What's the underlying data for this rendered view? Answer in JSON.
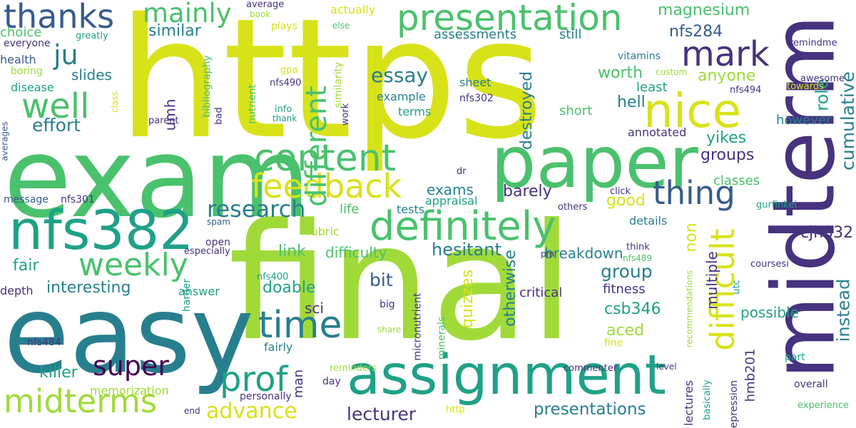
{
  "colors": {
    "background": "#ffffff",
    "yellow": "#d8e219",
    "lime": "#a0da39",
    "green": "#4ac16d",
    "teal": "#1fa187",
    "bluegreen": "#277f8e",
    "blue": "#365c8d",
    "indigo": "#46327e",
    "purple": "#440154"
  },
  "words": [
    {
      "text": "https",
      "color": "yellow"
    },
    {
      "text": "exam",
      "color": "green"
    },
    {
      "text": "final",
      "color": "lime"
    },
    {
      "text": "midterm",
      "color": "indigo"
    },
    {
      "text": "easy",
      "color": "bluegreen"
    },
    {
      "text": "paper",
      "color": "green"
    },
    {
      "text": "assignment",
      "color": "teal"
    },
    {
      "text": "nfs382",
      "color": "teal"
    },
    {
      "text": "definitely",
      "color": "green"
    },
    {
      "text": "nice",
      "color": "yellow"
    },
    {
      "text": "content",
      "color": "green"
    },
    {
      "text": "thanks",
      "color": "blue"
    },
    {
      "text": "presentation",
      "color": "green"
    },
    {
      "text": "feedback",
      "color": "yellow"
    },
    {
      "text": "thing",
      "color": "blue"
    },
    {
      "text": "weekly",
      "color": "green"
    },
    {
      "text": "prof",
      "color": "teal"
    },
    {
      "text": "time",
      "color": "bluegreen"
    },
    {
      "text": "midterms",
      "color": "lime"
    },
    {
      "text": "mark",
      "color": "indigo"
    },
    {
      "text": "well",
      "color": "green"
    },
    {
      "text": "difficult",
      "color": "yellow"
    },
    {
      "text": "different",
      "color": "green"
    },
    {
      "text": "research",
      "color": "bluegreen"
    },
    {
      "text": "super",
      "color": "purple"
    },
    {
      "text": "ju",
      "color": "bluegreen"
    },
    {
      "text": "mainly",
      "color": "green"
    },
    {
      "text": "advance",
      "color": "yellow"
    },
    {
      "text": "essay",
      "color": "bluegreen"
    },
    {
      "text": "cumulative",
      "color": "bluegreen"
    },
    {
      "text": "instead",
      "color": "bluegreen"
    },
    {
      "text": "effort",
      "color": "bluegreen"
    },
    {
      "text": "lecturer",
      "color": "indigo"
    },
    {
      "text": "presentations",
      "color": "bluegreen"
    },
    {
      "text": "quizzes",
      "color": "yellow"
    },
    {
      "text": "otherwise",
      "color": "bluegreen"
    },
    {
      "text": "destroyed",
      "color": "bluegreen"
    },
    {
      "text": "hesitant",
      "color": "bluegreen"
    },
    {
      "text": "interesting",
      "color": "bluegreen"
    },
    {
      "text": "doable",
      "color": "teal"
    },
    {
      "text": "killer",
      "color": "teal"
    },
    {
      "text": "fair",
      "color": "teal"
    },
    {
      "text": "bit",
      "color": "blue"
    },
    {
      "text": "group",
      "color": "bluegreen"
    },
    {
      "text": "good",
      "color": "yellow"
    },
    {
      "text": "aced",
      "color": "lime"
    },
    {
      "text": "anyone",
      "color": "lime"
    },
    {
      "text": "worth",
      "color": "green"
    },
    {
      "text": "hell",
      "color": "bluegreen"
    },
    {
      "text": "role",
      "color": "teal"
    },
    {
      "text": "magnesium",
      "color": "green"
    },
    {
      "text": "nfs284",
      "color": "blue"
    },
    {
      "text": "groups",
      "color": "indigo"
    },
    {
      "text": "yikes",
      "color": "teal"
    },
    {
      "text": "barely",
      "color": "indigo"
    },
    {
      "text": "exams",
      "color": "bluegreen"
    },
    {
      "text": "link",
      "color": "green"
    },
    {
      "text": "difficulty",
      "color": "green"
    },
    {
      "text": "breakdown",
      "color": "bluegreen"
    },
    {
      "text": "non",
      "color": "yellow"
    },
    {
      "text": "multiple",
      "color": "indigo"
    },
    {
      "text": "cjh332",
      "color": "indigo"
    },
    {
      "text": "possible",
      "color": "teal"
    },
    {
      "text": "csb346",
      "color": "teal"
    },
    {
      "text": "hmb201",
      "color": "indigo"
    },
    {
      "text": "man",
      "color": "indigo"
    },
    {
      "text": "sci",
      "color": "indigo"
    },
    {
      "text": "similar",
      "color": "bluegreen"
    },
    {
      "text": "slides",
      "color": "bluegreen"
    },
    {
      "text": "health",
      "color": "blue"
    },
    {
      "text": "choice",
      "color": "green"
    },
    {
      "text": "disease",
      "color": "teal"
    },
    {
      "text": "umh",
      "color": "indigo"
    },
    {
      "text": "assessments",
      "color": "bluegreen"
    },
    {
      "text": "still",
      "color": "bluegreen"
    },
    {
      "text": "least",
      "color": "teal"
    },
    {
      "text": "annotated",
      "color": "indigo"
    },
    {
      "text": "however",
      "color": "bluegreen"
    },
    {
      "text": "short",
      "color": "green"
    },
    {
      "text": "example",
      "color": "bluegreen"
    },
    {
      "text": "terms",
      "color": "teal"
    },
    {
      "text": "sheet",
      "color": "bluegreen"
    },
    {
      "text": "nfs302",
      "color": "indigo"
    },
    {
      "text": "classes",
      "color": "green"
    },
    {
      "text": "details",
      "color": "bluegreen"
    },
    {
      "text": "critical",
      "color": "indigo"
    },
    {
      "text": "fitness",
      "color": "indigo"
    },
    {
      "text": "life",
      "color": "green"
    },
    {
      "text": "tests",
      "color": "bluegreen"
    },
    {
      "text": "appraisal",
      "color": "teal"
    },
    {
      "text": "rubric",
      "color": "lime"
    },
    {
      "text": "fairly",
      "color": "bluegreen"
    },
    {
      "text": "memorization",
      "color": "lime"
    },
    {
      "text": "answer",
      "color": "teal"
    },
    {
      "text": "depth",
      "color": "indigo"
    },
    {
      "text": "nfs484",
      "color": "indigo"
    },
    {
      "text": "message",
      "color": "blue"
    },
    {
      "text": "nfs301",
      "color": "indigo"
    },
    {
      "text": "spam",
      "color": "blue"
    },
    {
      "text": "open",
      "color": "indigo"
    },
    {
      "text": "especially",
      "color": "indigo"
    },
    {
      "text": "harder",
      "color": "teal"
    },
    {
      "text": "end",
      "color": "indigo"
    },
    {
      "text": "personally",
      "color": "indigo"
    },
    {
      "text": "day",
      "color": "indigo"
    },
    {
      "text": "reminders",
      "color": "lime"
    },
    {
      "text": "http",
      "color": "yellow"
    },
    {
      "text": "share",
      "color": "lime"
    },
    {
      "text": "big",
      "color": "indigo"
    },
    {
      "text": "nfs400",
      "color": "teal"
    },
    {
      "text": "micronutrient",
      "color": "indigo"
    },
    {
      "text": "minerals",
      "color": "green"
    },
    {
      "text": "pm",
      "color": "indigo"
    },
    {
      "text": "commenter",
      "color": "indigo"
    },
    {
      "text": "level",
      "color": "indigo"
    },
    {
      "text": "lectures",
      "color": "indigo"
    },
    {
      "text": "basically",
      "color": "teal"
    },
    {
      "text": "depression",
      "color": "indigo"
    },
    {
      "text": "overall",
      "color": "indigo"
    },
    {
      "text": "experience",
      "color": "green"
    },
    {
      "text": "part",
      "color": "teal"
    },
    {
      "text": "utc",
      "color": "teal"
    },
    {
      "text": "coursesi",
      "color": "indigo"
    },
    {
      "text": "nfs489",
      "color": "green"
    },
    {
      "text": "think",
      "color": "indigo"
    },
    {
      "text": "recommendations",
      "color": "lime"
    },
    {
      "text": "fine",
      "color": "yellow"
    },
    {
      "text": "click",
      "color": "indigo"
    },
    {
      "text": "gurfinkel",
      "color": "teal"
    },
    {
      "text": "others",
      "color": "indigo"
    },
    {
      "text": "dr",
      "color": "indigo"
    },
    {
      "text": "vitamins",
      "color": "bluegreen"
    },
    {
      "text": "custom",
      "color": "lime"
    },
    {
      "text": "awesome",
      "color": "indigo"
    },
    {
      "text": "towards",
      "color": "yellow"
    },
    {
      "text": "nfs494",
      "color": "indigo"
    },
    {
      "text": "remindme",
      "color": "indigo"
    },
    {
      "text": "average",
      "color": "indigo"
    },
    {
      "text": "book",
      "color": "lime"
    },
    {
      "text": "actually",
      "color": "yellow"
    },
    {
      "text": "plays",
      "color": "yellow"
    },
    {
      "text": "else",
      "color": "green"
    },
    {
      "text": "greatly",
      "color": "teal"
    },
    {
      "text": "everyone",
      "color": "indigo"
    },
    {
      "text": "boring",
      "color": "lime"
    },
    {
      "text": "bibliography",
      "color": "green"
    },
    {
      "text": "gpa",
      "color": "yellow"
    },
    {
      "text": "nfs490",
      "color": "indigo"
    },
    {
      "text": "info",
      "color": "teal"
    },
    {
      "text": "thank",
      "color": "teal"
    },
    {
      "text": "similarity",
      "color": "lime"
    },
    {
      "text": "nutrient",
      "color": "green"
    },
    {
      "text": "bad",
      "color": "indigo"
    },
    {
      "text": "work",
      "color": "indigo"
    },
    {
      "text": "class",
      "color": "yellow"
    },
    {
      "text": "parent",
      "color": "indigo"
    },
    {
      "text": "averages",
      "color": "blue"
    }
  ]
}
